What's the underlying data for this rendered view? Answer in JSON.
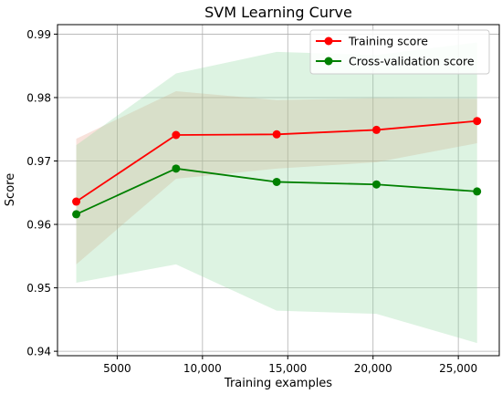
{
  "chart_data": {
    "type": "line",
    "title": "SVM Learning Curve",
    "xlabel": "Training examples",
    "ylabel": "Score",
    "xlim": [
      1500,
      27400
    ],
    "ylim": [
      0.9393,
      0.9915
    ],
    "grid": true,
    "legend_position": "top-right",
    "x_ticks": [
      5000,
      10000,
      15000,
      20000,
      25000
    ],
    "x_tick_labels": [
      "5000",
      "10,000",
      "15,000",
      "20,000",
      "25,000"
    ],
    "y_ticks": [
      0.94,
      0.95,
      0.96,
      0.97,
      0.98,
      0.99
    ],
    "y_tick_labels": [
      "0.94",
      "0.95",
      "0.96",
      "0.97",
      "0.98",
      "0.99"
    ],
    "x": [
      2600,
      8450,
      14350,
      20200,
      26100
    ],
    "series": [
      {
        "name": "Training score",
        "color": "#ff0000",
        "band_color": "#e8a088",
        "values": [
          0.9636,
          0.9741,
          0.9742,
          0.9749,
          0.9763
        ],
        "band_low": [
          0.9537,
          0.9672,
          0.9688,
          0.9698,
          0.9728
        ],
        "band_high": [
          0.9735,
          0.981,
          0.9796,
          0.9799,
          0.9798
        ]
      },
      {
        "name": "Cross-validation score",
        "color": "#008000",
        "band_color": "#90d8a0",
        "values": [
          0.9616,
          0.9688,
          0.9667,
          0.9663,
          0.9652
        ],
        "band_low": [
          0.9508,
          0.9537,
          0.9464,
          0.9459,
          0.9413
        ],
        "band_high": [
          0.9725,
          0.9838,
          0.9872,
          0.9867,
          0.9887
        ]
      }
    ]
  }
}
